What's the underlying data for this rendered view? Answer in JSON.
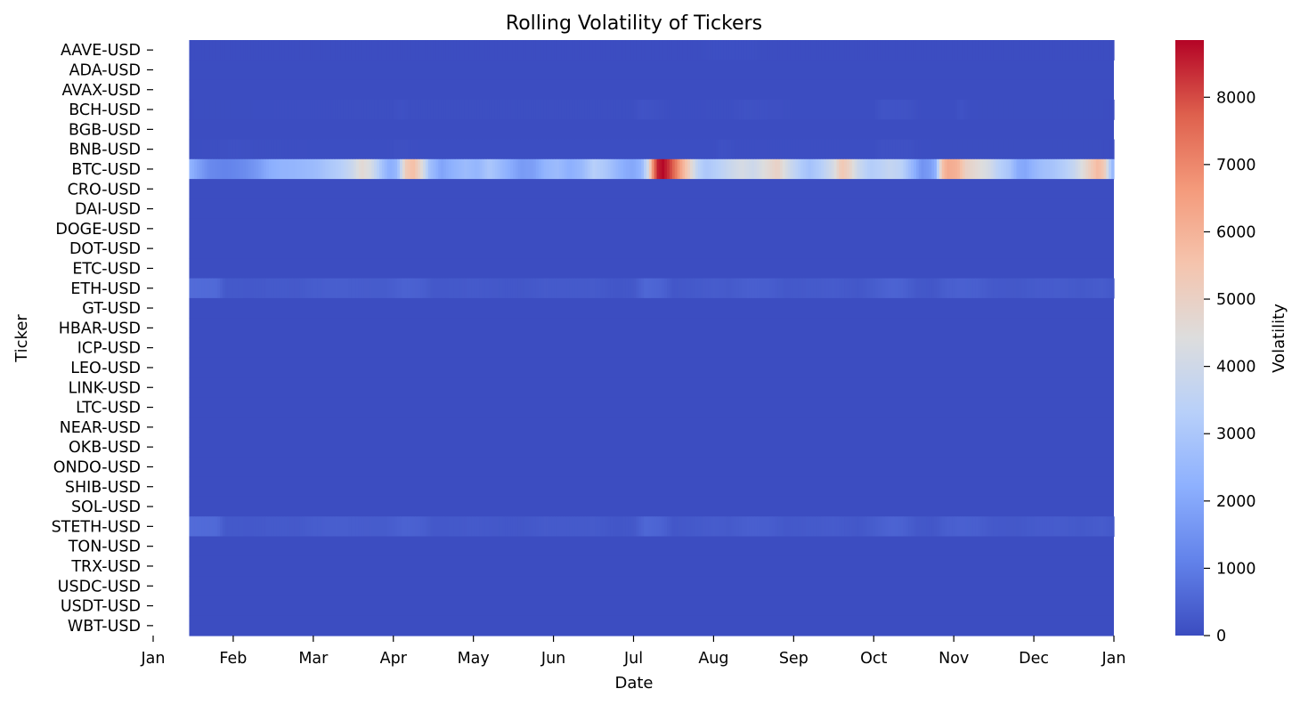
{
  "chart_data": {
    "type": "heatmap",
    "title": "Rolling Volatility of Tickers",
    "xlabel": "Date",
    "ylabel": "Ticker",
    "x_tick_labels": [
      "Jan",
      "Feb",
      "Mar",
      "Apr",
      "May",
      "Jun",
      "Jul",
      "Aug",
      "Sep",
      "Oct",
      "Nov",
      "Dec",
      "Jan"
    ],
    "x_range_months": [
      0,
      12
    ],
    "data_start_month": 0.45,
    "colormap": "coolwarm",
    "colorbar": {
      "label": "Volatility",
      "min": 0,
      "max": 8850,
      "ticks": [
        0,
        1000,
        2000,
        3000,
        4000,
        5000,
        6000,
        7000,
        8000
      ],
      "tick_labels": [
        "0",
        "1000",
        "2000",
        "3000",
        "4000",
        "5000",
        "6000",
        "7000",
        "8000"
      ]
    },
    "tickers": [
      "AAVE-USD",
      "ADA-USD",
      "AVAX-USD",
      "BCH-USD",
      "BGB-USD",
      "BNB-USD",
      "BTC-USD",
      "CRO-USD",
      "DAI-USD",
      "DOGE-USD",
      "DOT-USD",
      "ETC-USD",
      "ETH-USD",
      "GT-USD",
      "HBAR-USD",
      "ICP-USD",
      "LEO-USD",
      "LINK-USD",
      "LTC-USD",
      "NEAR-USD",
      "OKB-USD",
      "ONDO-USD",
      "SHIB-USD",
      "SOL-USD",
      "STETH-USD",
      "TON-USD",
      "TRX-USD",
      "USDC-USD",
      "USDT-USD",
      "WBT-USD"
    ],
    "default_value": 20,
    "series": [
      {
        "name": "BTC-USD",
        "points": [
          [
            0.45,
            2400
          ],
          [
            0.55,
            1900
          ],
          [
            0.7,
            1300
          ],
          [
            0.9,
            1150
          ],
          [
            1.0,
            1200
          ],
          [
            1.15,
            1350
          ],
          [
            1.3,
            1650
          ],
          [
            1.45,
            2150
          ],
          [
            1.6,
            2350
          ],
          [
            1.75,
            2400
          ],
          [
            1.9,
            2500
          ],
          [
            2.05,
            2650
          ],
          [
            2.2,
            3000
          ],
          [
            2.35,
            3300
          ],
          [
            2.5,
            3900
          ],
          [
            2.6,
            4700
          ],
          [
            2.72,
            4200
          ],
          [
            2.85,
            2900
          ],
          [
            2.95,
            2150
          ],
          [
            3.05,
            2500
          ],
          [
            3.15,
            5200
          ],
          [
            3.25,
            5700
          ],
          [
            3.35,
            4600
          ],
          [
            3.45,
            2800
          ],
          [
            3.6,
            1900
          ],
          [
            3.75,
            2300
          ],
          [
            3.9,
            2600
          ],
          [
            4.05,
            2400
          ],
          [
            4.2,
            3000
          ],
          [
            4.35,
            2500
          ],
          [
            4.5,
            2000
          ],
          [
            4.6,
            1700
          ],
          [
            4.75,
            1800
          ],
          [
            4.9,
            2400
          ],
          [
            5.05,
            2600
          ],
          [
            5.2,
            2200
          ],
          [
            5.35,
            2500
          ],
          [
            5.5,
            3300
          ],
          [
            5.65,
            3000
          ],
          [
            5.8,
            2400
          ],
          [
            5.9,
            2100
          ],
          [
            6.0,
            2000
          ],
          [
            6.1,
            2400
          ],
          [
            6.18,
            4000
          ],
          [
            6.25,
            7200
          ],
          [
            6.3,
            8500
          ],
          [
            6.37,
            8800
          ],
          [
            6.45,
            8200
          ],
          [
            6.52,
            7400
          ],
          [
            6.6,
            6200
          ],
          [
            6.7,
            5000
          ],
          [
            6.8,
            3500
          ],
          [
            6.9,
            3000
          ],
          [
            7.05,
            3300
          ],
          [
            7.2,
            3800
          ],
          [
            7.35,
            4200
          ],
          [
            7.5,
            3900
          ],
          [
            7.65,
            4500
          ],
          [
            7.8,
            5000
          ],
          [
            7.95,
            3900
          ],
          [
            8.1,
            3100
          ],
          [
            8.2,
            2800
          ],
          [
            8.35,
            3300
          ],
          [
            8.5,
            4200
          ],
          [
            8.6,
            5400
          ],
          [
            8.7,
            4900
          ],
          [
            8.8,
            3900
          ],
          [
            8.95,
            3200
          ],
          [
            9.05,
            3300
          ],
          [
            9.2,
            3700
          ],
          [
            9.35,
            3400
          ],
          [
            9.5,
            2300
          ],
          [
            9.6,
            1500
          ],
          [
            9.7,
            1700
          ],
          [
            9.78,
            2300
          ],
          [
            9.85,
            5500
          ],
          [
            9.92,
            6200
          ],
          [
            10.05,
            6000
          ],
          [
            10.15,
            5000
          ],
          [
            10.3,
            4600
          ],
          [
            10.45,
            4100
          ],
          [
            10.55,
            3400
          ],
          [
            10.7,
            2900
          ],
          [
            10.8,
            2100
          ],
          [
            10.9,
            2000
          ],
          [
            11.0,
            2400
          ],
          [
            11.1,
            2700
          ],
          [
            11.25,
            2900
          ],
          [
            11.4,
            3300
          ],
          [
            11.5,
            3700
          ],
          [
            11.6,
            4400
          ],
          [
            11.7,
            5100
          ],
          [
            11.8,
            5800
          ],
          [
            11.88,
            5300
          ],
          [
            11.95,
            3200
          ],
          [
            12.0,
            2200
          ]
        ]
      },
      {
        "name": "ETH-USD",
        "points": [
          [
            0.45,
            650
          ],
          [
            0.8,
            600
          ],
          [
            0.9,
            270
          ],
          [
            1.2,
            250
          ],
          [
            1.5,
            290
          ],
          [
            1.8,
            270
          ],
          [
            2.0,
            340
          ],
          [
            2.3,
            380
          ],
          [
            2.6,
            330
          ],
          [
            2.9,
            320
          ],
          [
            3.15,
            460
          ],
          [
            3.35,
            400
          ],
          [
            3.5,
            250
          ],
          [
            3.8,
            260
          ],
          [
            4.0,
            290
          ],
          [
            4.3,
            240
          ],
          [
            4.6,
            220
          ],
          [
            4.9,
            300
          ],
          [
            5.2,
            280
          ],
          [
            5.5,
            300
          ],
          [
            5.8,
            200
          ],
          [
            6.0,
            240
          ],
          [
            6.15,
            560
          ],
          [
            6.35,
            470
          ],
          [
            6.5,
            230
          ],
          [
            6.8,
            280
          ],
          [
            7.0,
            330
          ],
          [
            7.2,
            290
          ],
          [
            7.45,
            400
          ],
          [
            7.7,
            360
          ],
          [
            7.9,
            250
          ],
          [
            8.2,
            280
          ],
          [
            8.5,
            320
          ],
          [
            8.8,
            230
          ],
          [
            9.0,
            340
          ],
          [
            9.2,
            480
          ],
          [
            9.35,
            450
          ],
          [
            9.55,
            250
          ],
          [
            9.75,
            220
          ],
          [
            9.9,
            380
          ],
          [
            10.1,
            420
          ],
          [
            10.3,
            380
          ],
          [
            10.5,
            260
          ],
          [
            10.8,
            240
          ],
          [
            11.0,
            300
          ],
          [
            11.3,
            320
          ],
          [
            11.6,
            260
          ],
          [
            11.85,
            330
          ],
          [
            12.0,
            240
          ]
        ]
      },
      {
        "name": "STETH-USD",
        "points": [
          [
            0.45,
            650
          ],
          [
            0.8,
            600
          ],
          [
            0.9,
            270
          ],
          [
            1.2,
            250
          ],
          [
            1.5,
            290
          ],
          [
            1.8,
            270
          ],
          [
            2.0,
            340
          ],
          [
            2.3,
            380
          ],
          [
            2.6,
            330
          ],
          [
            2.9,
            320
          ],
          [
            3.15,
            460
          ],
          [
            3.35,
            400
          ],
          [
            3.5,
            250
          ],
          [
            3.8,
            260
          ],
          [
            4.0,
            290
          ],
          [
            4.3,
            240
          ],
          [
            4.6,
            220
          ],
          [
            4.9,
            300
          ],
          [
            5.2,
            280
          ],
          [
            5.5,
            300
          ],
          [
            5.8,
            200
          ],
          [
            6.0,
            240
          ],
          [
            6.15,
            560
          ],
          [
            6.35,
            470
          ],
          [
            6.5,
            230
          ],
          [
            6.8,
            280
          ],
          [
            7.0,
            330
          ],
          [
            7.2,
            290
          ],
          [
            7.45,
            400
          ],
          [
            7.7,
            360
          ],
          [
            7.9,
            250
          ],
          [
            8.2,
            280
          ],
          [
            8.5,
            320
          ],
          [
            8.8,
            230
          ],
          [
            9.0,
            340
          ],
          [
            9.2,
            480
          ],
          [
            9.35,
            450
          ],
          [
            9.55,
            250
          ],
          [
            9.75,
            220
          ],
          [
            9.9,
            380
          ],
          [
            10.1,
            420
          ],
          [
            10.3,
            380
          ],
          [
            10.5,
            260
          ],
          [
            10.8,
            240
          ],
          [
            11.0,
            300
          ],
          [
            11.3,
            320
          ],
          [
            11.6,
            260
          ],
          [
            11.85,
            330
          ],
          [
            12.0,
            240
          ]
        ]
      },
      {
        "name": "BCH-USD",
        "points": [
          [
            0.45,
            30
          ],
          [
            3.0,
            60
          ],
          [
            3.1,
            110
          ],
          [
            3.2,
            60
          ],
          [
            6.0,
            60
          ],
          [
            6.1,
            150
          ],
          [
            6.3,
            100
          ],
          [
            6.5,
            40
          ],
          [
            7.2,
            60
          ],
          [
            7.4,
            120
          ],
          [
            7.8,
            80
          ],
          [
            8.0,
            40
          ],
          [
            9.0,
            40
          ],
          [
            9.1,
            160
          ],
          [
            9.4,
            140
          ],
          [
            9.6,
            40
          ],
          [
            10.0,
            40
          ],
          [
            10.1,
            130
          ],
          [
            10.2,
            40
          ],
          [
            12.0,
            30
          ]
        ]
      },
      {
        "name": "BNB-USD",
        "points": [
          [
            0.45,
            30
          ],
          [
            0.8,
            60
          ],
          [
            1.0,
            110
          ],
          [
            1.3,
            60
          ],
          [
            2.0,
            40
          ],
          [
            2.9,
            40
          ],
          [
            3.1,
            90
          ],
          [
            3.3,
            40
          ],
          [
            7.0,
            40
          ],
          [
            7.1,
            110
          ],
          [
            7.3,
            50
          ],
          [
            9.0,
            40
          ],
          [
            9.1,
            110
          ],
          [
            9.4,
            110
          ],
          [
            9.6,
            40
          ],
          [
            12.0,
            30
          ]
        ]
      },
      {
        "name": "AAVE-USD",
        "points": [
          [
            0.45,
            20
          ],
          [
            6.8,
            20
          ],
          [
            7.0,
            70
          ],
          [
            7.5,
            70
          ],
          [
            7.6,
            20
          ],
          [
            12.0,
            20
          ]
        ]
      }
    ]
  }
}
